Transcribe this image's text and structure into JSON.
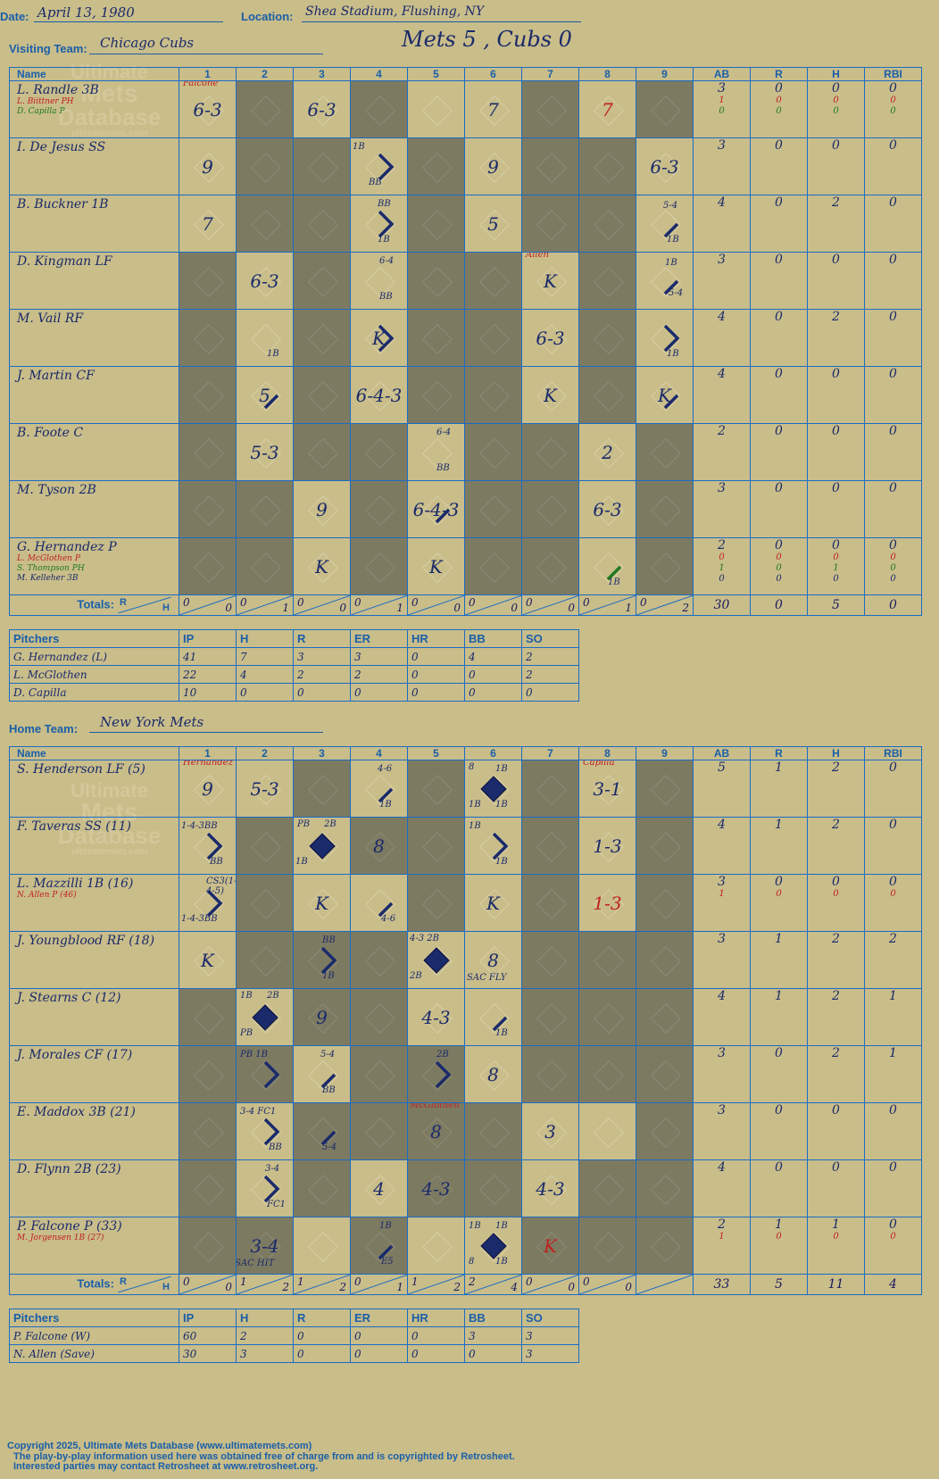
{
  "header": {
    "date_label": "Date:",
    "date": "April 13, 1980",
    "location_label": "Location:",
    "location": "Shea Stadium, Flushing, NY",
    "visiting_label": "Visiting Team:",
    "visiting_team": "Chicago Cubs",
    "home_label": "Home Team:",
    "home_team": "New York Mets",
    "score_title": "Mets 5 , Cubs 0"
  },
  "columns": {
    "name": "Name",
    "innings": [
      "1",
      "2",
      "3",
      "4",
      "5",
      "6",
      "7",
      "8",
      "9"
    ],
    "stats": [
      "AB",
      "R",
      "H",
      "RBI"
    ]
  },
  "totals_label": "Totals:",
  "pitch_cols": [
    "Pitchers",
    "IP",
    "H",
    "R",
    "ER",
    "HR",
    "BB",
    "SO"
  ],
  "watermark": [
    "Ultimate",
    "Mets",
    "Database",
    "ultimatemets.com"
  ],
  "visitors": {
    "players": [
      {
        "name": "L. Randle 3B",
        "subs": [
          {
            "t": "L. Biittner PH",
            "c": "r"
          },
          {
            "t": "D. Capilla P",
            "c": "g"
          }
        ],
        "cells": [
          "6-3",
          "",
          "6-3",
          "",
          "",
          "7",
          "",
          "7|red",
          ""
        ],
        "stats": [
          "3",
          "0",
          "0",
          "0"
        ],
        "sub_stats": [
          [
            "1",
            "0",
            "0",
            "0"
          ],
          [
            "0",
            "0",
            "0",
            "0"
          ]
        ]
      },
      {
        "name": "I. De Jesus SS",
        "subs": [],
        "cells": [
          "9",
          "",
          "",
          "",
          "",
          "9",
          "",
          "",
          "6-3"
        ],
        "stats": [
          "3",
          "0",
          "0",
          "0"
        ]
      },
      {
        "name": "B. Buckner 1B",
        "subs": [],
        "cells": [
          "7",
          "",
          "",
          "",
          "",
          "5",
          "",
          "",
          ""
        ],
        "stats": [
          "4",
          "0",
          "2",
          "0"
        ]
      },
      {
        "name": "D. Kingman LF",
        "subs": [],
        "cells": [
          "",
          "6-3",
          "",
          "",
          "",
          "",
          "K",
          "",
          ""
        ],
        "stats": [
          "3",
          "0",
          "0",
          "0"
        ]
      },
      {
        "name": "M. Vail RF",
        "subs": [],
        "cells": [
          "",
          "",
          "",
          "K",
          "",
          "",
          "6-3",
          "",
          ""
        ],
        "stats": [
          "4",
          "0",
          "2",
          "0"
        ]
      },
      {
        "name": "J. Martin CF",
        "subs": [],
        "cells": [
          "",
          "5",
          "",
          "6-4-3",
          "",
          "",
          "K",
          "",
          "K"
        ],
        "stats": [
          "4",
          "0",
          "0",
          "0"
        ]
      },
      {
        "name": "B. Foote C",
        "subs": [],
        "cells": [
          "",
          "5-3",
          "",
          "",
          "",
          "",
          "",
          "2",
          ""
        ],
        "stats": [
          "2",
          "0",
          "0",
          "0"
        ]
      },
      {
        "name": "M. Tyson 2B",
        "subs": [],
        "cells": [
          "",
          "",
          "9",
          "",
          "6-4-3",
          "",
          "",
          "6-3",
          ""
        ],
        "stats": [
          "3",
          "0",
          "0",
          "0"
        ]
      },
      {
        "name": "G. Hernandez P",
        "subs": [
          {
            "t": "L. McGlothen P",
            "c": "r"
          },
          {
            "t": "S. Thompson PH",
            "c": "g"
          },
          {
            "t": "M. Kelleher 3B",
            "c": "n"
          }
        ],
        "cells": [
          "",
          "",
          "K",
          "",
          "K",
          "",
          "",
          "",
          ""
        ],
        "stats": [
          "2",
          "0",
          "0",
          "0"
        ],
        "sub_stats": [
          [
            "0",
            "0",
            "0",
            "0"
          ],
          [
            "1",
            "0",
            "1",
            "0"
          ],
          [
            "0",
            "0",
            "0",
            "0"
          ]
        ]
      }
    ],
    "totals": [
      [
        "0",
        "0"
      ],
      [
        "0",
        "1"
      ],
      [
        "0",
        "0"
      ],
      [
        "0",
        "1"
      ],
      [
        "0",
        "0"
      ],
      [
        "0",
        "0"
      ],
      [
        "0",
        "0"
      ],
      [
        "0",
        "1"
      ],
      [
        "0",
        "2"
      ]
    ],
    "total_stats": [
      "30",
      "0",
      "5",
      "0"
    ],
    "pitchers": [
      [
        "G. Hernandez (L)",
        "41",
        "7",
        "3",
        "3",
        "0",
        "4",
        "2"
      ],
      [
        "L. McGlothen",
        "22",
        "4",
        "2",
        "2",
        "0",
        "0",
        "2"
      ],
      [
        "D. Capilla",
        "10",
        "0",
        "0",
        "0",
        "0",
        "0",
        "0"
      ]
    ]
  },
  "home": {
    "players": [
      {
        "name": "S. Henderson LF (5)",
        "subs": [],
        "cells": [
          "9",
          "5-3",
          "",
          "",
          "",
          "",
          "",
          "3-1",
          ""
        ],
        "stats": [
          "5",
          "1",
          "2",
          "0"
        ]
      },
      {
        "name": "F. Taveras SS (11)",
        "subs": [],
        "cells": [
          "",
          "",
          "",
          "8",
          "",
          "",
          "",
          "1-3",
          ""
        ],
        "stats": [
          "4",
          "1",
          "2",
          "0"
        ]
      },
      {
        "name": "L. Mazzilli 1B (16)",
        "subs": [
          {
            "t": "N. Allen P (46)",
            "c": "r"
          }
        ],
        "cells": [
          "",
          "",
          "K",
          "",
          "",
          "K",
          "",
          "1-3|red",
          ""
        ],
        "stats": [
          "3",
          "0",
          "0",
          "0"
        ],
        "sub_stats": [
          [
            "1",
            "0",
            "0",
            "0"
          ]
        ]
      },
      {
        "name": "J. Youngblood RF (18)",
        "subs": [],
        "cells": [
          "K",
          "",
          "",
          "",
          "",
          "8",
          "",
          "",
          ""
        ],
        "stats": [
          "3",
          "1",
          "2",
          "2"
        ]
      },
      {
        "name": "J. Stearns C (12)",
        "subs": [],
        "cells": [
          "",
          "",
          "9",
          "",
          "4-3",
          "",
          "",
          "",
          ""
        ],
        "stats": [
          "4",
          "1",
          "2",
          "1"
        ]
      },
      {
        "name": "J. Morales CF (17)",
        "subs": [],
        "cells": [
          "",
          "",
          "",
          "",
          "",
          "8",
          "",
          "",
          ""
        ],
        "stats": [
          "3",
          "0",
          "2",
          "1"
        ]
      },
      {
        "name": "E. Maddox 3B (21)",
        "subs": [],
        "cells": [
          "",
          "",
          "",
          "",
          "8",
          "",
          "3",
          "",
          ""
        ],
        "stats": [
          "3",
          "0",
          "0",
          "0"
        ]
      },
      {
        "name": "D. Flynn 2B (23)",
        "subs": [],
        "cells": [
          "",
          "",
          "",
          "4",
          "4-3",
          "",
          "4-3",
          "",
          ""
        ],
        "stats": [
          "4",
          "0",
          "0",
          "0"
        ]
      },
      {
        "name": "P. Falcone P (33)",
        "subs": [
          {
            "t": "M. Jorgensen 1B (27)",
            "c": "r"
          }
        ],
        "cells": [
          "",
          "3-4",
          "",
          "",
          "",
          "",
          "K|red",
          "",
          ""
        ],
        "stats": [
          "2",
          "1",
          "1",
          "0"
        ],
        "sub_stats": [
          [
            "1",
            "0",
            "0",
            "0"
          ]
        ]
      }
    ],
    "totals": [
      [
        "0",
        "0"
      ],
      [
        "1",
        "2"
      ],
      [
        "1",
        "2"
      ],
      [
        "0",
        "1"
      ],
      [
        "1",
        "2"
      ],
      [
        "2",
        "4"
      ],
      [
        "0",
        "0"
      ],
      [
        "0",
        "0"
      ],
      [
        "",
        ""
      ]
    ],
    "total_stats": [
      "33",
      "5",
      "11",
      "4"
    ],
    "pitchers": [
      [
        "P. Falcone (W)",
        "60",
        "2",
        "0",
        "0",
        "0",
        "3",
        "3"
      ],
      [
        "N. Allen (Save)",
        "30",
        "3",
        "0",
        "0",
        "0",
        "0",
        "3"
      ]
    ]
  },
  "notes": {
    "falcone": "Falcone",
    "allen": "Allen",
    "hernandez": "Hernandez",
    "capilla": "Capilla",
    "mcglothen": "McGlothen",
    "v_r2_4_top": "1B",
    "v_r2_4_bot": "BB",
    "v_r3_4_top": "BB",
    "v_r3_4_bot": "1B",
    "v_r3_9_top": "5-4",
    "v_r3_9_bot": "1B",
    "v_r4_4_top": "6-4",
    "v_r4_4_bot": "BB",
    "v_r4_9_top": "1B",
    "v_r4_9_bot": "5-4",
    "v_r5_2_bot": "1B",
    "v_r5_9_bot": "1B",
    "v_r7_5_top": "6-4",
    "v_r7_5_bot": "BB",
    "v_r9_8_bot": "1B",
    "h_r1_4_top": "4-6",
    "h_r1_4_bot": "1B",
    "h_r1_6_a": "8",
    "h_r1_6_b": "1B",
    "h_r1_6_c": "1B",
    "h_r1_6_d": "1B",
    "h_r2_1_top": "1-4-3BB",
    "h_r2_1_bot": "BB",
    "h_r2_3_a": "PB",
    "h_r2_3_b": "2B",
    "h_r2_3_c": "1B",
    "h_r2_6_top": "1B",
    "h_r2_6_bot": "1B",
    "h_r3_1_top": "CS3(1-4-5)",
    "h_r3_1_bot": "1-4-3BB",
    "h_r3_4_bot": "4-6",
    "h_r4_3_top": "BB",
    "h_r4_3_bot": "1B",
    "h_r4_5_top": "4-3 2B",
    "h_r4_5_bot": "2B",
    "h_r4_6_bot": "SAC FLY",
    "h_r5_2_a": "1B",
    "h_r5_2_b": "2B",
    "h_r5_2_c": "PB",
    "h_r5_6_bot": "1B",
    "h_r6_2_top": "PB 1B",
    "h_r6_3_top": "5-4",
    "h_r6_3_bot": "BB",
    "h_r6_5_top": "2B",
    "h_r7_2_top": "3-4 FC1",
    "h_r7_2_bot": "BB",
    "h_r7_3_bot": "5-4",
    "h_r8_2_top": "3-4",
    "h_r8_2_bot": "FC1",
    "h_r9_2_bot": "SAC HIT",
    "h_r9_4_top": "1B",
    "h_r9_4_bot": "E5",
    "h_r9_6_a": "1B",
    "h_r9_6_b": "1B",
    "h_r9_6_c": "8",
    "h_r9_6_d": "1B"
  },
  "footer": [
    "Copyright 2025, Ultimate Mets Database (www.ultimatemets.com)",
    "The play-by-play information used here was obtained free of charge from and is copyrighted by Retrosheet.",
    "Interested parties may contact Retrosheet at www.retrosheet.org."
  ]
}
